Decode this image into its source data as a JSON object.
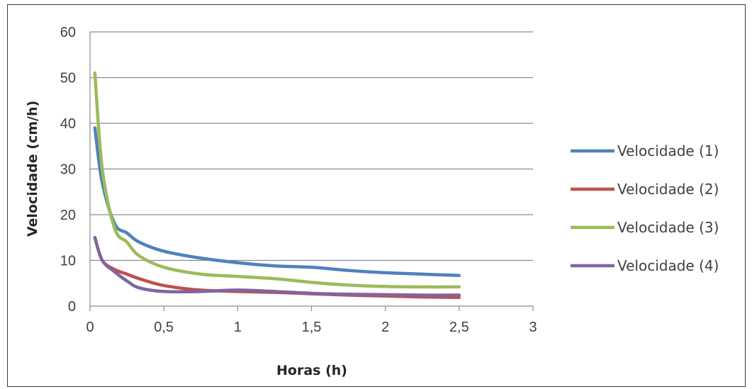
{
  "chart_data": {
    "type": "line",
    "title": "",
    "xlabel": "Horas (h)",
    "ylabel": "Velocidade  (cm/h)",
    "xlim": [
      0,
      3
    ],
    "ylim": [
      0,
      60
    ],
    "x_ticks": [
      "0",
      "0,5",
      "1",
      "1,5",
      "2",
      "2,5",
      "3"
    ],
    "y_ticks": [
      "0",
      "10",
      "20",
      "30",
      "40",
      "50",
      "60"
    ],
    "grid": "horizontal",
    "legend": "right",
    "series": [
      {
        "name": "Velocidade (1)",
        "color": "#4f81bd",
        "x": [
          0.033,
          0.083,
          0.167,
          0.25,
          0.333,
          0.5,
          0.75,
          1.0,
          1.25,
          1.5,
          1.75,
          2.0,
          2.25,
          2.5
        ],
        "y": [
          39,
          27,
          18,
          16,
          14,
          12,
          10.5,
          9.5,
          8.8,
          8.5,
          7.8,
          7.3,
          7.0,
          6.7
        ]
      },
      {
        "name": "Velocidade (2)",
        "color": "#c0504d",
        "x": [
          0.033,
          0.083,
          0.167,
          0.25,
          0.333,
          0.5,
          0.75,
          1.0,
          1.25,
          1.5,
          1.75,
          2.0,
          2.25,
          2.5
        ],
        "y": [
          15,
          10,
          8,
          7,
          6,
          4.5,
          3.5,
          3.2,
          3.0,
          2.7,
          2.4,
          2.2,
          2.0,
          1.9
        ]
      },
      {
        "name": "Velocidade (3)",
        "color": "#9bbb59",
        "x": [
          0.033,
          0.083,
          0.167,
          0.25,
          0.333,
          0.5,
          0.75,
          1.0,
          1.25,
          1.5,
          1.75,
          2.0,
          2.25,
          2.5
        ],
        "y": [
          51,
          30,
          17,
          14,
          11,
          8.5,
          7,
          6.5,
          6.0,
          5.2,
          4.6,
          4.3,
          4.2,
          4.2
        ]
      },
      {
        "name": "Velocidade (4)",
        "color": "#8064a2",
        "x": [
          0.033,
          0.083,
          0.167,
          0.25,
          0.333,
          0.5,
          0.75,
          1.0,
          1.25,
          1.5,
          1.75,
          2.0,
          2.25,
          2.5
        ],
        "y": [
          15,
          10,
          7.5,
          5.5,
          4,
          3.2,
          3.2,
          3.5,
          3.2,
          2.8,
          2.6,
          2.5,
          2.4,
          2.4
        ]
      }
    ]
  }
}
